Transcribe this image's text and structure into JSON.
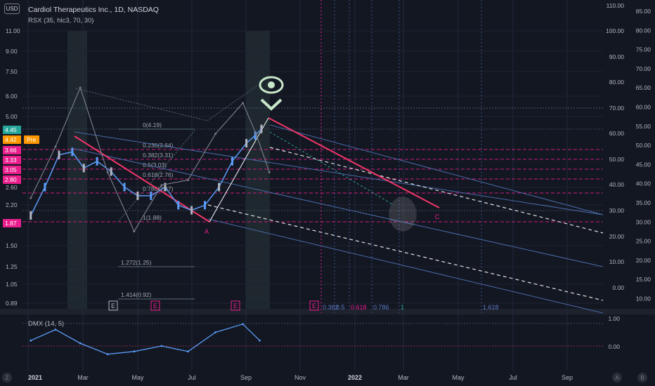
{
  "header": {
    "currency_badge": "USD",
    "title": "Cardiol Therapeutics Inc., 1D, NASDAQ",
    "rsx_label": "RSX (35, hlc3, 70, 30)",
    "dmx_label": "DMX (14, 5)"
  },
  "colors": {
    "background": "#131722",
    "candle_up": "#b2b5be",
    "candle_down": "#5b9cf6",
    "fib_magenta": "#e91e8c",
    "channel_red": "#f23668",
    "channel_blue": "#5b78c0",
    "osc_line": "#787b86",
    "dmx_line": "#5b9cf6",
    "eye_icon": "#c8e6c9"
  },
  "left_axis": {
    "ticks": [
      "11.00",
      "9.00",
      "7.50",
      "6.00",
      "5.00",
      "2.60",
      "2.20",
      "1.50",
      "1.25",
      "1.05",
      "0.89"
    ],
    "badges": [
      {
        "text": "4.45",
        "color": "#26a69a"
      },
      {
        "text": "4.42",
        "color": "#ff9800"
      },
      {
        "text": "Pre",
        "color": "#ff9800"
      },
      {
        "text": "3.66",
        "color": "#e91e8c"
      },
      {
        "text": "3.33",
        "color": "#e91e8c"
      },
      {
        "text": "3.05",
        "color": "#e91e8c"
      },
      {
        "text": "2.80",
        "color": "#e91e8c"
      },
      {
        "text": "1.87",
        "color": "#e91e8c"
      }
    ]
  },
  "osc_axis": {
    "ticks": [
      "110.00",
      "100.00",
      "90.00",
      "80.00",
      "70.00",
      "60.00",
      "50.00",
      "40.00",
      "30.00",
      "20.00",
      "10.00",
      "0.00"
    ]
  },
  "price_axis_right": {
    "ticks": [
      "85.00",
      "80.00",
      "75.00",
      "70.00",
      "65.00",
      "60.00",
      "55.00",
      "50.00",
      "45.00",
      "40.00",
      "35.00",
      "30.00",
      "25.00",
      "20.00",
      "15.00",
      "10.00"
    ]
  },
  "dmx_axis": {
    "ticks": [
      "1.00",
      "0.00"
    ]
  },
  "time_axis": {
    "labels": [
      "2021",
      "Mar",
      "May",
      "Jul",
      "Sep",
      "Nov",
      "2022",
      "Mar",
      "May",
      "Jul",
      "Sep"
    ]
  },
  "fib_retracement": {
    "levels": [
      {
        "label": "0(4.19)"
      },
      {
        "label": "0.236(3.64)"
      },
      {
        "label": "0.382(3.31)"
      },
      {
        "label": "0.5(3.03)"
      },
      {
        "label": "0.618(2.76)"
      },
      {
        "label": "0.786(2.37)"
      },
      {
        "label": "1(1.88)"
      },
      {
        "label": "1.272(1.25)"
      },
      {
        "label": "1.414(0.92)"
      }
    ]
  },
  "fib_time": {
    "labels": [
      "0.382",
      "0.5",
      "0.618",
      "0.786",
      "1",
      "1.618"
    ]
  },
  "wave_labels": {
    "a": "A",
    "c": "C"
  },
  "event_flags": [
    "E",
    "E",
    "E",
    "E"
  ],
  "bottom_buttons": {
    "left": "Z",
    "right_a": "A",
    "right_b": "B"
  },
  "chart_data": {
    "type": "line",
    "title": "Cardiol Therapeutics Inc., 1D, NASDAQ",
    "x_range": [
      "2021-01",
      "2022-10"
    ],
    "y_scale": "log",
    "price": {
      "x": [
        "2021-01-04",
        "2021-01-20",
        "2021-02-05",
        "2021-02-20",
        "2021-03-05",
        "2021-03-20",
        "2021-04-05",
        "2021-04-20",
        "2021-05-05",
        "2021-05-20",
        "2021-06-05",
        "2021-06-20",
        "2021-07-05",
        "2021-07-20",
        "2021-08-05",
        "2021-08-20",
        "2021-09-05",
        "2021-09-15",
        "2021-09-22"
      ],
      "values": [
        2.0,
        2.6,
        3.5,
        3.6,
        3.1,
        3.3,
        3.0,
        2.6,
        2.4,
        2.4,
        2.6,
        2.2,
        2.1,
        2.2,
        2.6,
        3.3,
        3.9,
        4.19,
        4.45
      ]
    },
    "rsx": {
      "name": "RSX (35, hlc3, 70, 30)",
      "x": [
        "2021-01-04",
        "2021-02-01",
        "2021-03-01",
        "2021-04-01",
        "2021-05-01",
        "2021-06-01",
        "2021-07-01",
        "2021-08-01",
        "2021-09-01",
        "2021-09-16",
        "2021-10-01"
      ],
      "values": [
        35,
        55,
        78,
        45,
        22,
        40,
        42,
        60,
        72,
        60,
        45
      ]
    },
    "dmx": {
      "name": "DMX (14, 5)",
      "x": [
        "2021-01-04",
        "2021-02-01",
        "2021-03-01",
        "2021-04-01",
        "2021-05-01",
        "2021-06-01",
        "2021-07-01",
        "2021-08-01",
        "2021-09-01",
        "2021-09-20"
      ],
      "values": [
        0.2,
        0.6,
        0.1,
        -0.3,
        -0.2,
        0.0,
        -0.2,
        0.5,
        0.8,
        0.2
      ]
    },
    "fib_levels": [
      4.19,
      3.64,
      3.31,
      3.03,
      2.76,
      2.37,
      1.88,
      1.25,
      0.92
    ],
    "grid": true
  }
}
